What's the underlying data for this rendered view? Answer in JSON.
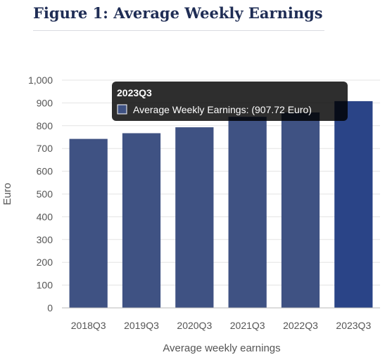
{
  "figure": {
    "title": "Figure 1: Average Weekly Earnings"
  },
  "chart_data": {
    "type": "bar",
    "title": "",
    "xlabel": "Average weekly earnings",
    "ylabel": "Euro",
    "categories": [
      "2018Q3",
      "2019Q3",
      "2020Q3",
      "2021Q3",
      "2022Q3",
      "2023Q3"
    ],
    "series": [
      {
        "name": "Average Weekly Earnings",
        "values": [
          742,
          767,
          793,
          839,
          858,
          907.72
        ]
      }
    ],
    "ylim": [
      0,
      1000
    ],
    "yticks": [
      0,
      100,
      200,
      300,
      400,
      500,
      600,
      700,
      800,
      900,
      1000
    ],
    "ytick_labels": [
      "0",
      "100",
      "200",
      "300",
      "400",
      "500",
      "600",
      "700",
      "800",
      "900",
      "1,000"
    ],
    "grid": true,
    "colors": {
      "bar": "#3f5283",
      "bar_highlight": "#2a4487",
      "grid": "#e3e3e3"
    },
    "tooltip": {
      "title": "2023Q3",
      "label": "Average Weekly Earnings: (907.72 Euro)",
      "active_index": 5
    }
  }
}
